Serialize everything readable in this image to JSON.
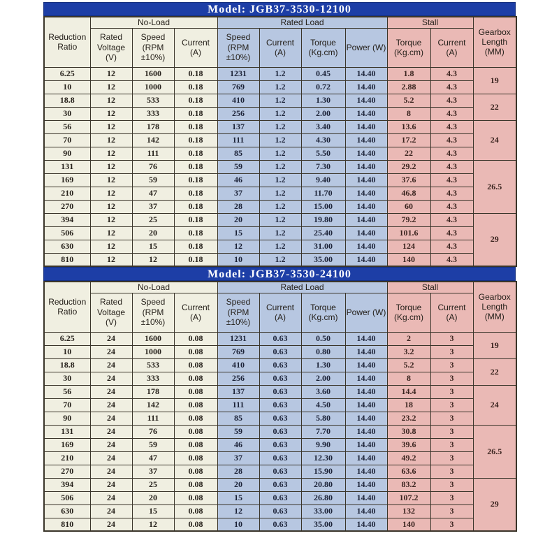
{
  "colors": {
    "title_bar": "#1d3ea6",
    "no_load_bg": "#f0efe1",
    "rated_load_bg": "#b7c7e1",
    "stall_bg": "#eab9b5"
  },
  "tables": [
    {
      "title": "Model: JGB37-3530-12100",
      "header": {
        "reduction_ratio": "Reduction Ratio",
        "no_load": "No-Load",
        "rated_load": "Rated Load",
        "stall": "Stall",
        "gearbox": "Gearbox Length (MM)",
        "sub": [
          "Rated Voltage (V)",
          "Speed (RPM ±10%)",
          "Current (A)",
          "Speed (RPM ±10%)",
          "Current (A)",
          "Torque (Kg.cm)",
          "Power (W)",
          "Torque (Kg.cm)",
          "Current (A)"
        ]
      },
      "rows": [
        [
          "6.25",
          "12",
          "1600",
          "0.18",
          "1231",
          "1.2",
          "0.45",
          "14.40",
          "1.8",
          "4.3"
        ],
        [
          "10",
          "12",
          "1000",
          "0.18",
          "769",
          "1.2",
          "0.72",
          "14.40",
          "2.88",
          "4.3"
        ],
        [
          "18.8",
          "12",
          "533",
          "0.18",
          "410",
          "1.2",
          "1.30",
          "14.40",
          "5.2",
          "4.3"
        ],
        [
          "30",
          "12",
          "333",
          "0.18",
          "256",
          "1.2",
          "2.00",
          "14.40",
          "8",
          "4.3"
        ],
        [
          "56",
          "12",
          "178",
          "0.18",
          "137",
          "1.2",
          "3.40",
          "14.40",
          "13.6",
          "4.3"
        ],
        [
          "70",
          "12",
          "142",
          "0.18",
          "111",
          "1.2",
          "4.30",
          "14.40",
          "17.2",
          "4.3"
        ],
        [
          "90",
          "12",
          "111",
          "0.18",
          "85",
          "1.2",
          "5.50",
          "14.40",
          "22",
          "4.3"
        ],
        [
          "131",
          "12",
          "76",
          "0.18",
          "59",
          "1.2",
          "7.30",
          "14.40",
          "29.2",
          "4.3"
        ],
        [
          "169",
          "12",
          "59",
          "0.18",
          "46",
          "1.2",
          "9.40",
          "14.40",
          "37.6",
          "4.3"
        ],
        [
          "210",
          "12",
          "47",
          "0.18",
          "37",
          "1.2",
          "11.70",
          "14.40",
          "46.8",
          "4.3"
        ],
        [
          "270",
          "12",
          "37",
          "0.18",
          "28",
          "1.2",
          "15.00",
          "14.40",
          "60",
          "4.3"
        ],
        [
          "394",
          "12",
          "25",
          "0.18",
          "20",
          "1.2",
          "19.80",
          "14.40",
          "79.2",
          "4.3"
        ],
        [
          "506",
          "12",
          "20",
          "0.18",
          "15",
          "1.2",
          "25.40",
          "14.40",
          "101.6",
          "4.3"
        ],
        [
          "630",
          "12",
          "15",
          "0.18",
          "12",
          "1.2",
          "31.00",
          "14.40",
          "124",
          "4.3"
        ],
        [
          "810",
          "12",
          "12",
          "0.18",
          "10",
          "1.2",
          "35.00",
          "14.40",
          "140",
          "4.3"
        ]
      ],
      "gearbox_spans": [
        {
          "value": "19",
          "rows": 2
        },
        {
          "value": "22",
          "rows": 2
        },
        {
          "value": "24",
          "rows": 3
        },
        {
          "value": "26.5",
          "rows": 4
        },
        {
          "value": "29",
          "rows": 4
        }
      ]
    },
    {
      "title": "Model: JGB37-3530-24100",
      "header": {
        "reduction_ratio": "Reduction Ratio",
        "no_load": "No-Load",
        "rated_load": "Rated Load",
        "stall": "Stall",
        "gearbox": "Gearbox Length (MM)",
        "sub": [
          "Rated Voltage (V)",
          "Speed (RPM ±10%)",
          "Current (A)",
          "Speed (RPM ±10%)",
          "Current (A)",
          "Torque (Kg.cm)",
          "Power (W)",
          "Torque (Kg.cm)",
          "Current (A)"
        ]
      },
      "rows": [
        [
          "6.25",
          "24",
          "1600",
          "0.08",
          "1231",
          "0.63",
          "0.50",
          "14.40",
          "2",
          "3"
        ],
        [
          "10",
          "24",
          "1000",
          "0.08",
          "769",
          "0.63",
          "0.80",
          "14.40",
          "3.2",
          "3"
        ],
        [
          "18.8",
          "24",
          "533",
          "0.08",
          "410",
          "0.63",
          "1.30",
          "14.40",
          "5.2",
          "3"
        ],
        [
          "30",
          "24",
          "333",
          "0.08",
          "256",
          "0.63",
          "2.00",
          "14.40",
          "8",
          "3"
        ],
        [
          "56",
          "24",
          "178",
          "0.08",
          "137",
          "0.63",
          "3.60",
          "14.40",
          "14.4",
          "3"
        ],
        [
          "70",
          "24",
          "142",
          "0.08",
          "111",
          "0.63",
          "4.50",
          "14.40",
          "18",
          "3"
        ],
        [
          "90",
          "24",
          "111",
          "0.08",
          "85",
          "0.63",
          "5.80",
          "14.40",
          "23.2",
          "3"
        ],
        [
          "131",
          "24",
          "76",
          "0.08",
          "59",
          "0.63",
          "7.70",
          "14.40",
          "30.8",
          "3"
        ],
        [
          "169",
          "24",
          "59",
          "0.08",
          "46",
          "0.63",
          "9.90",
          "14.40",
          "39.6",
          "3"
        ],
        [
          "210",
          "24",
          "47",
          "0.08",
          "37",
          "0.63",
          "12.30",
          "14.40",
          "49.2",
          "3"
        ],
        [
          "270",
          "24",
          "37",
          "0.08",
          "28",
          "0.63",
          "15.90",
          "14.40",
          "63.6",
          "3"
        ],
        [
          "394",
          "24",
          "25",
          "0.08",
          "20",
          "0.63",
          "20.80",
          "14.40",
          "83.2",
          "3"
        ],
        [
          "506",
          "24",
          "20",
          "0.08",
          "15",
          "0.63",
          "26.80",
          "14.40",
          "107.2",
          "3"
        ],
        [
          "630",
          "24",
          "15",
          "0.08",
          "12",
          "0.63",
          "33.00",
          "14.40",
          "132",
          "3"
        ],
        [
          "810",
          "24",
          "12",
          "0.08",
          "10",
          "0.63",
          "35.00",
          "14.40",
          "140",
          "3"
        ]
      ],
      "gearbox_spans": [
        {
          "value": "19",
          "rows": 2
        },
        {
          "value": "22",
          "rows": 2
        },
        {
          "value": "24",
          "rows": 3
        },
        {
          "value": "26.5",
          "rows": 4
        },
        {
          "value": "29",
          "rows": 4
        }
      ]
    }
  ]
}
